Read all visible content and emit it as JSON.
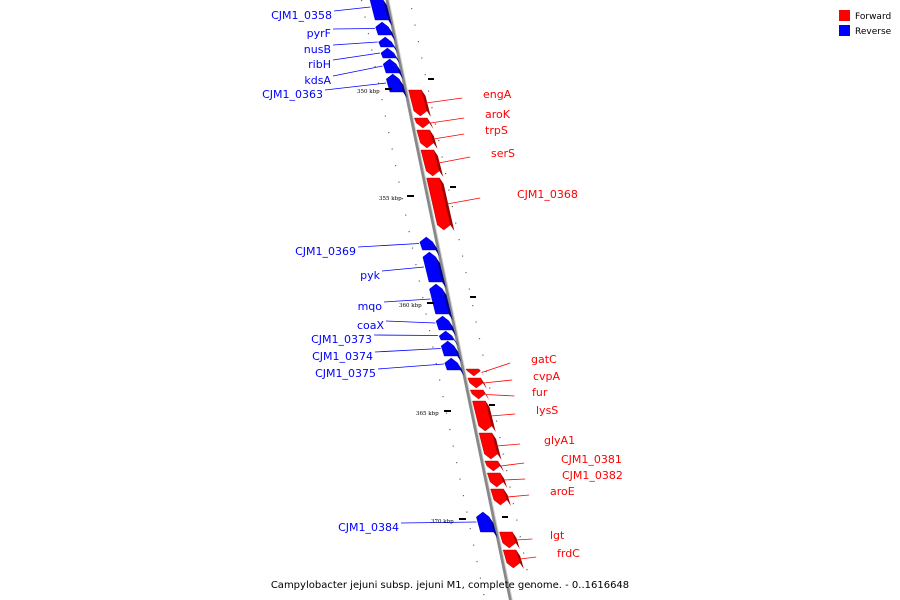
{
  "caption": "Campylobacter jejuni subsp. jejuni M1, complete genome. - 0..1616648",
  "legend": [
    {
      "label": "Forward",
      "color": "#ff0000"
    },
    {
      "label": "Reverse",
      "color": "#0000ff"
    }
  ],
  "colors": {
    "forward": "#ff0000",
    "reverse": "#0000ff",
    "backbone": "#888888"
  },
  "scale_labels": [
    "350 kbp",
    "355 kbp",
    "360 kbp",
    "365 kbp",
    "370 kbp"
  ],
  "genes": [
    {
      "name": "CJM1_0358",
      "strand": "reverse"
    },
    {
      "name": "pyrF",
      "strand": "reverse"
    },
    {
      "name": "nusB",
      "strand": "reverse"
    },
    {
      "name": "ribH",
      "strand": "reverse"
    },
    {
      "name": "kdsA",
      "strand": "reverse"
    },
    {
      "name": "CJM1_0363",
      "strand": "reverse"
    },
    {
      "name": "engA",
      "strand": "forward"
    },
    {
      "name": "aroK",
      "strand": "forward"
    },
    {
      "name": "trpS",
      "strand": "forward"
    },
    {
      "name": "serS",
      "strand": "forward"
    },
    {
      "name": "CJM1_0368",
      "strand": "forward"
    },
    {
      "name": "CJM1_0369",
      "strand": "reverse"
    },
    {
      "name": "pyk",
      "strand": "reverse"
    },
    {
      "name": "mqo",
      "strand": "reverse"
    },
    {
      "name": "coaX",
      "strand": "reverse"
    },
    {
      "name": "CJM1_0373",
      "strand": "reverse"
    },
    {
      "name": "CJM1_0374",
      "strand": "reverse"
    },
    {
      "name": "CJM1_0375",
      "strand": "reverse"
    },
    {
      "name": "gatC",
      "strand": "forward"
    },
    {
      "name": "cvpA",
      "strand": "forward"
    },
    {
      "name": "fur",
      "strand": "forward"
    },
    {
      "name": "lysS",
      "strand": "forward"
    },
    {
      "name": "glyA1",
      "strand": "forward"
    },
    {
      "name": "CJM1_0381",
      "strand": "forward"
    },
    {
      "name": "CJM1_0382",
      "strand": "forward"
    },
    {
      "name": "aroE",
      "strand": "forward"
    },
    {
      "name": "CJM1_0384",
      "strand": "reverse"
    },
    {
      "name": "lgt",
      "strand": "forward"
    },
    {
      "name": "frdC",
      "strand": "forward"
    }
  ]
}
